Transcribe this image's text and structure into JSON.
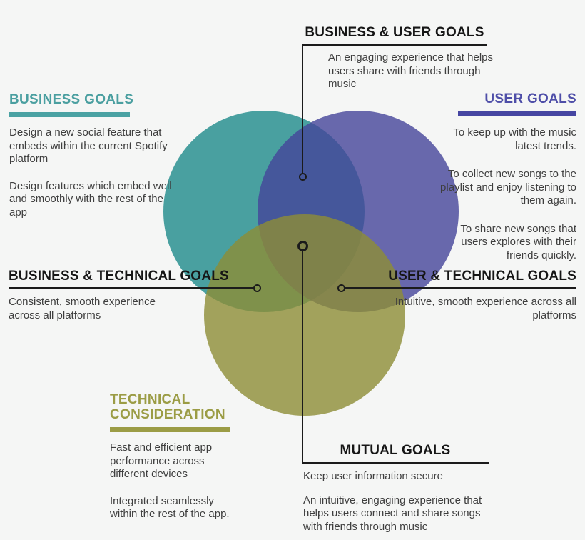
{
  "colors": {
    "background": "#f5f6f5",
    "business_circle": "#1F8B8B",
    "user_circle": "#45459A",
    "technical_circle": "#8D8D36",
    "circle_opacity": 0.8,
    "business_accent": "#4AA2A3",
    "user_accent": "#4646A2",
    "technical_accent": "#9B9C45",
    "connector_line": "#1b1b1b",
    "heading_black": "#161616",
    "body_text": "#3e3e3e"
  },
  "venn": {
    "circles": [
      {
        "name": "business-goals-circle",
        "color": "#1F8B8B"
      },
      {
        "name": "user-goals-circle",
        "color": "#45459A"
      },
      {
        "name": "technical-consideration-circle",
        "color": "#8D8D36"
      }
    ]
  },
  "sections": {
    "business_goals": {
      "title": "BUSINESS GOALS",
      "paragraphs": [
        "Design  a new social feature that embeds within the current Spotify platform",
        "Design features which embed well and smoothly with the rest of the app"
      ]
    },
    "user_goals": {
      "title": "USER GOALS",
      "paragraphs": [
        "To keep up with the music latest trends.",
        "To collect new songs to the playlist and enjoy listening to them again.",
        "To share new songs that users explores with their friends quickly."
      ]
    },
    "business_user_goals": {
      "title": "BUSINESS & USER GOALS",
      "body": "An engaging experience that helps users share with friends through music"
    },
    "business_technical_goals": {
      "title": "BUSINESS & TECHNICAL GOALS",
      "body": "Consistent, smooth experience across all platforms"
    },
    "user_technical_goals": {
      "title": "USER & TECHNICAL GOALS",
      "body": "Intuitive, smooth experience across all platforms"
    },
    "technical_consideration": {
      "title_line1": "TECHNICAL",
      "title_line2": "CONSIDERATION",
      "paragraphs": [
        "Fast and efficient app performance across different devices",
        "Integrated seamlessly within the rest of the app."
      ]
    },
    "mutual_goals": {
      "title": "MUTUAL GOALS",
      "paragraphs": [
        "Keep user information secure",
        "An intuitive, engaging experience that helps users connect and share songs with friends through music"
      ]
    }
  }
}
